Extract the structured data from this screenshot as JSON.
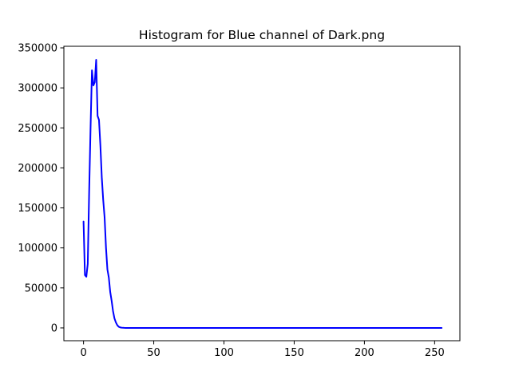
{
  "chart_data": {
    "type": "line",
    "title": "Histogram for Blue channel of Dark.png",
    "xlabel": "",
    "ylabel": "",
    "xlim": [
      -14,
      268
    ],
    "ylim": [
      -16000,
      352000
    ],
    "xticks": [
      0,
      50,
      100,
      150,
      200,
      250
    ],
    "yticks": [
      0,
      50000,
      100000,
      150000,
      200000,
      250000,
      300000,
      350000
    ],
    "grid": false,
    "legend": "none",
    "series": [
      {
        "color": "#0000ff",
        "x": [
          0,
          1,
          2,
          3,
          4,
          5,
          6,
          7,
          8,
          9,
          10,
          11,
          12,
          13,
          14,
          15,
          16,
          17,
          18,
          19,
          20,
          21,
          22,
          23,
          24,
          25,
          26,
          27,
          28,
          29,
          30,
          32,
          35,
          40,
          50,
          255
        ],
        "y": [
          133000,
          66000,
          64000,
          80000,
          170000,
          250000,
          322000,
          303000,
          307000,
          335000,
          265000,
          260000,
          228000,
          188000,
          160000,
          138000,
          100000,
          73000,
          63000,
          45000,
          34000,
          21000,
          12000,
          7000,
          3500,
          1500,
          700,
          300,
          150,
          60,
          20,
          0,
          0,
          0,
          0,
          0
        ]
      }
    ]
  }
}
